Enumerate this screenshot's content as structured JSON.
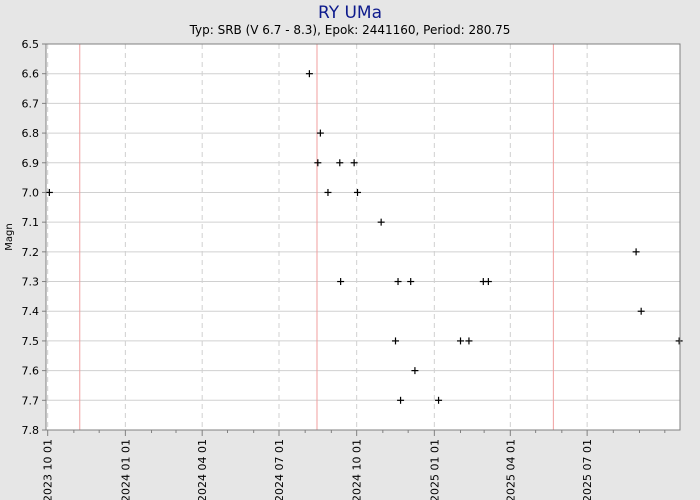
{
  "chart_data": {
    "type": "scatter",
    "title": "RY UMa",
    "subtitle": "Typ: SRB (V 6.7 - 8.3), Epok: 2441160, Period: 280.75",
    "xlabel": "",
    "ylabel": "Magn",
    "ylim": [
      6.5,
      7.8
    ],
    "y_inverted": true,
    "y_ticks": [
      "6.5",
      "6.6",
      "6.7",
      "6.8",
      "6.9",
      "7.0",
      "7.1",
      "7.2",
      "7.3",
      "7.4",
      "7.5",
      "7.6",
      "7.7",
      "7.8"
    ],
    "xlim": [
      "2023-09-29",
      "2025-10-19"
    ],
    "x_tick_labels": [
      {
        "date": "2023-10-01",
        "label": "2023 10 01"
      },
      {
        "date": "2024-01-01",
        "label": "2024 01 01"
      },
      {
        "date": "2024-04-01",
        "label": "2024 04 01"
      },
      {
        "date": "2024-07-01",
        "label": "2024 07 01"
      },
      {
        "date": "2024-10-01",
        "label": "2024 10 01"
      },
      {
        "date": "2025-01-01",
        "label": "2025 01 01"
      },
      {
        "date": "2025-04-01",
        "label": "2025 04 01"
      },
      {
        "date": "2025-07-01",
        "label": "2025 07 01"
      }
    ],
    "x_minor_ticks": [
      "2023-11-01",
      "2023-12-01",
      "2024-02-01",
      "2024-03-01",
      "2024-05-01",
      "2024-06-01",
      "2024-08-01",
      "2024-09-01",
      "2024-11-01",
      "2024-12-01",
      "2025-02-01",
      "2025-03-01",
      "2025-05-01",
      "2025-06-01",
      "2025-08-01",
      "2025-09-01",
      "2025-10-01"
    ],
    "epoch_markers": [
      "2023-11-08",
      "2024-08-15",
      "2025-05-22"
    ],
    "marker": "+",
    "grid": true,
    "legend": "none",
    "points": [
      {
        "x": "2023-10-03",
        "y": 7.0
      },
      {
        "x": "2024-08-06",
        "y": 6.6
      },
      {
        "x": "2024-08-19",
        "y": 6.8
      },
      {
        "x": "2024-08-16",
        "y": 6.9
      },
      {
        "x": "2024-08-28",
        "y": 7.0
      },
      {
        "x": "2024-09-11",
        "y": 6.9
      },
      {
        "x": "2024-09-12",
        "y": 7.3
      },
      {
        "x": "2024-09-28",
        "y": 6.9
      },
      {
        "x": "2024-10-02",
        "y": 7.0
      },
      {
        "x": "2024-10-30",
        "y": 7.1
      },
      {
        "x": "2024-11-16",
        "y": 7.5
      },
      {
        "x": "2024-11-19",
        "y": 7.3
      },
      {
        "x": "2024-11-22",
        "y": 7.7
      },
      {
        "x": "2024-12-04",
        "y": 7.3
      },
      {
        "x": "2024-12-09",
        "y": 7.6
      },
      {
        "x": "2025-01-06",
        "y": 7.7
      },
      {
        "x": "2025-02-01",
        "y": 7.5
      },
      {
        "x": "2025-02-11",
        "y": 7.5
      },
      {
        "x": "2025-02-28",
        "y": 7.3
      },
      {
        "x": "2025-03-06",
        "y": 7.3
      },
      {
        "x": "2025-08-28",
        "y": 7.2
      },
      {
        "x": "2025-09-03",
        "y": 7.4
      },
      {
        "x": "2025-10-18",
        "y": 7.5
      }
    ],
    "colors": {
      "background": "#e6e6e6",
      "plot_background": "#ffffff",
      "title": "#0d1a8c",
      "grid": "#d0d0d0",
      "epoch_line": "#f0a0a0",
      "marker": "#000000",
      "frame": "#808080"
    }
  }
}
